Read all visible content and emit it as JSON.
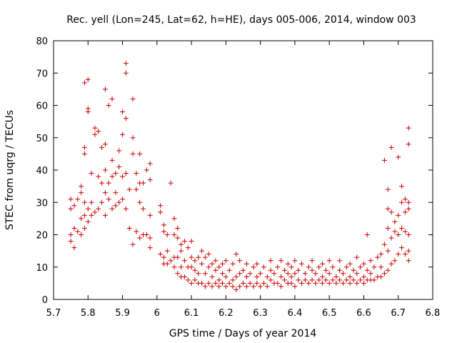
{
  "chart_data": {
    "type": "scatter",
    "title": "Rec. yell (Lon=245, Lat=62, h=HE), days 005-006, 2014, window 003",
    "xlabel": "GPS time / Days of year 2014",
    "ylabel": "STEC from uqrg / TECUs",
    "xlim": [
      5.7,
      6.8
    ],
    "ylim": [
      0,
      80
    ],
    "xticks": [
      "5.7",
      "5.8",
      "5.9",
      "6",
      "6.1",
      "6.2",
      "6.3",
      "6.4",
      "6.5",
      "6.6",
      "6.7",
      "6.8"
    ],
    "yticks": [
      "0",
      "10",
      "20",
      "30",
      "40",
      "50",
      "60",
      "70",
      "80"
    ],
    "marker": "+",
    "color": "#cc0000",
    "series": [
      {
        "name": "STEC",
        "points": [
          [
            5.75,
            18
          ],
          [
            5.75,
            20
          ],
          [
            5.75,
            28
          ],
          [
            5.75,
            31
          ],
          [
            5.76,
            16
          ],
          [
            5.76,
            22
          ],
          [
            5.76,
            29
          ],
          [
            5.77,
            21
          ],
          [
            5.77,
            31
          ],
          [
            5.78,
            20
          ],
          [
            5.78,
            25
          ],
          [
            5.78,
            33
          ],
          [
            5.78,
            35
          ],
          [
            5.79,
            22
          ],
          [
            5.79,
            26
          ],
          [
            5.79,
            30
          ],
          [
            5.79,
            45
          ],
          [
            5.79,
            47
          ],
          [
            5.79,
            67
          ],
          [
            5.8,
            24
          ],
          [
            5.8,
            28
          ],
          [
            5.8,
            58
          ],
          [
            5.8,
            59
          ],
          [
            5.8,
            68
          ],
          [
            5.81,
            26
          ],
          [
            5.81,
            30
          ],
          [
            5.81,
            39
          ],
          [
            5.82,
            27
          ],
          [
            5.82,
            51
          ],
          [
            5.82,
            53
          ],
          [
            5.83,
            28
          ],
          [
            5.83,
            38
          ],
          [
            5.83,
            52
          ],
          [
            5.84,
            30
          ],
          [
            5.84,
            36
          ],
          [
            5.84,
            47
          ],
          [
            5.85,
            26
          ],
          [
            5.85,
            33
          ],
          [
            5.85,
            40
          ],
          [
            5.85,
            48
          ],
          [
            5.85,
            65
          ],
          [
            5.86,
            31
          ],
          [
            5.86,
            36
          ],
          [
            5.86,
            60
          ],
          [
            5.87,
            28
          ],
          [
            5.87,
            38
          ],
          [
            5.87,
            43
          ],
          [
            5.87,
            62
          ],
          [
            5.88,
            29
          ],
          [
            5.88,
            33
          ],
          [
            5.88,
            39
          ],
          [
            5.89,
            30
          ],
          [
            5.89,
            41
          ],
          [
            5.89,
            46
          ],
          [
            5.9,
            31
          ],
          [
            5.9,
            38
          ],
          [
            5.9,
            58
          ],
          [
            5.9,
            51
          ],
          [
            5.91,
            28
          ],
          [
            5.91,
            39
          ],
          [
            5.91,
            56
          ],
          [
            5.91,
            70
          ],
          [
            5.91,
            73
          ],
          [
            5.92,
            34
          ],
          [
            5.92,
            22
          ],
          [
            5.93,
            45
          ],
          [
            5.93,
            50
          ],
          [
            5.93,
            62
          ],
          [
            5.93,
            17
          ],
          [
            5.94,
            34
          ],
          [
            5.94,
            21
          ],
          [
            5.94,
            39
          ],
          [
            5.95,
            19
          ],
          [
            5.95,
            30
          ],
          [
            5.95,
            36
          ],
          [
            5.95,
            45
          ],
          [
            5.96,
            20
          ],
          [
            5.96,
            28
          ],
          [
            5.96,
            36
          ],
          [
            5.97,
            20
          ],
          [
            5.97,
            40
          ],
          [
            5.98,
            16
          ],
          [
            5.98,
            19
          ],
          [
            5.98,
            26
          ],
          [
            5.98,
            37
          ],
          [
            5.98,
            42
          ],
          [
            6.01,
            14
          ],
          [
            6.01,
            27
          ],
          [
            6.01,
            29
          ],
          [
            6.02,
            11
          ],
          [
            6.02,
            13
          ],
          [
            6.02,
            21
          ],
          [
            6.02,
            23
          ],
          [
            6.03,
            11
          ],
          [
            6.03,
            15
          ],
          [
            6.03,
            20
          ],
          [
            6.04,
            12
          ],
          [
            6.04,
            36
          ],
          [
            6.05,
            10
          ],
          [
            6.05,
            13
          ],
          [
            6.05,
            20
          ],
          [
            6.05,
            25
          ],
          [
            6.06,
            8
          ],
          [
            6.06,
            13
          ],
          [
            6.06,
            19
          ],
          [
            6.06,
            22
          ],
          [
            6.07,
            7
          ],
          [
            6.07,
            10
          ],
          [
            6.07,
            15
          ],
          [
            6.07,
            17
          ],
          [
            6.08,
            7
          ],
          [
            6.08,
            12
          ],
          [
            6.08,
            18
          ],
          [
            6.09,
            6
          ],
          [
            6.09,
            10
          ],
          [
            6.09,
            16
          ],
          [
            6.1,
            5
          ],
          [
            6.1,
            10
          ],
          [
            6.1,
            13
          ],
          [
            6.1,
            18
          ],
          [
            6.11,
            6
          ],
          [
            6.11,
            9
          ],
          [
            6.11,
            12
          ],
          [
            6.12,
            5
          ],
          [
            6.12,
            8
          ],
          [
            6.12,
            13
          ],
          [
            6.13,
            5
          ],
          [
            6.13,
            11
          ],
          [
            6.13,
            15
          ],
          [
            6.14,
            4
          ],
          [
            6.14,
            8
          ],
          [
            6.14,
            13
          ],
          [
            6.15,
            5
          ],
          [
            6.15,
            10
          ],
          [
            6.15,
            14
          ],
          [
            6.16,
            4
          ],
          [
            6.16,
            7
          ],
          [
            6.16,
            11
          ],
          [
            6.17,
            5
          ],
          [
            6.17,
            9
          ],
          [
            6.17,
            12
          ],
          [
            6.18,
            4
          ],
          [
            6.18,
            6
          ],
          [
            6.18,
            10
          ],
          [
            6.19,
            5
          ],
          [
            6.19,
            8
          ],
          [
            6.19,
            11
          ],
          [
            6.2,
            4
          ],
          [
            6.2,
            7
          ],
          [
            6.2,
            12
          ],
          [
            6.21,
            5
          ],
          [
            6.21,
            9
          ],
          [
            6.22,
            4
          ],
          [
            6.22,
            6
          ],
          [
            6.22,
            11
          ],
          [
            6.23,
            3
          ],
          [
            6.23,
            7
          ],
          [
            6.23,
            14
          ],
          [
            6.24,
            4
          ],
          [
            6.24,
            8
          ],
          [
            6.24,
            12
          ],
          [
            6.25,
            5
          ],
          [
            6.25,
            9
          ],
          [
            6.26,
            4
          ],
          [
            6.26,
            7
          ],
          [
            6.26,
            11
          ],
          [
            6.27,
            5
          ],
          [
            6.27,
            8
          ],
          [
            6.28,
            4
          ],
          [
            6.28,
            10
          ],
          [
            6.29,
            5
          ],
          [
            6.29,
            7
          ],
          [
            6.29,
            11
          ],
          [
            6.3,
            4
          ],
          [
            6.3,
            8
          ],
          [
            6.31,
            5
          ],
          [
            6.31,
            10
          ],
          [
            6.32,
            4
          ],
          [
            6.32,
            7
          ],
          [
            6.33,
            6
          ],
          [
            6.33,
            9
          ],
          [
            6.33,
            12
          ],
          [
            6.34,
            5
          ],
          [
            6.34,
            8
          ],
          [
            6.35,
            5
          ],
          [
            6.35,
            10
          ],
          [
            6.36,
            4
          ],
          [
            6.36,
            7
          ],
          [
            6.36,
            12
          ],
          [
            6.37,
            6
          ],
          [
            6.37,
            9
          ],
          [
            6.38,
            5
          ],
          [
            6.38,
            8
          ],
          [
            6.38,
            11
          ],
          [
            6.39,
            5
          ],
          [
            6.39,
            7
          ],
          [
            6.39,
            10
          ],
          [
            6.4,
            4
          ],
          [
            6.4,
            8
          ],
          [
            6.4,
            12
          ],
          [
            6.41,
            6
          ],
          [
            6.41,
            9
          ],
          [
            6.42,
            5
          ],
          [
            6.42,
            11
          ],
          [
            6.43,
            6
          ],
          [
            6.43,
            8
          ],
          [
            6.44,
            5
          ],
          [
            6.44,
            10
          ],
          [
            6.45,
            6
          ],
          [
            6.45,
            9
          ],
          [
            6.45,
            12
          ],
          [
            6.46,
            5
          ],
          [
            6.46,
            8
          ],
          [
            6.47,
            6
          ],
          [
            6.47,
            10
          ],
          [
            6.48,
            5
          ],
          [
            6.48,
            7
          ],
          [
            6.48,
            11
          ],
          [
            6.49,
            6
          ],
          [
            6.49,
            9
          ],
          [
            6.5,
            5
          ],
          [
            6.5,
            8
          ],
          [
            6.5,
            12
          ],
          [
            6.51,
            6
          ],
          [
            6.51,
            10
          ],
          [
            6.52,
            5
          ],
          [
            6.52,
            7
          ],
          [
            6.53,
            6
          ],
          [
            6.53,
            9
          ],
          [
            6.53,
            12
          ],
          [
            6.54,
            5
          ],
          [
            6.54,
            8
          ],
          [
            6.55,
            6
          ],
          [
            6.55,
            10
          ],
          [
            6.56,
            5
          ],
          [
            6.56,
            7
          ],
          [
            6.56,
            11
          ],
          [
            6.57,
            6
          ],
          [
            6.57,
            9
          ],
          [
            6.58,
            5
          ],
          [
            6.58,
            8
          ],
          [
            6.58,
            13
          ],
          [
            6.59,
            6
          ],
          [
            6.59,
            10
          ],
          [
            6.6,
            5
          ],
          [
            6.6,
            7
          ],
          [
            6.6,
            11
          ],
          [
            6.61,
            6
          ],
          [
            6.61,
            9
          ],
          [
            6.61,
            20
          ],
          [
            6.62,
            6
          ],
          [
            6.62,
            8
          ],
          [
            6.62,
            12
          ],
          [
            6.63,
            6
          ],
          [
            6.63,
            10
          ],
          [
            6.64,
            7
          ],
          [
            6.64,
            13
          ],
          [
            6.65,
            7
          ],
          [
            6.65,
            10
          ],
          [
            6.65,
            14
          ],
          [
            6.66,
            8
          ],
          [
            6.66,
            17
          ],
          [
            6.66,
            43
          ],
          [
            6.67,
            9
          ],
          [
            6.67,
            15
          ],
          [
            6.67,
            22
          ],
          [
            6.67,
            28
          ],
          [
            6.67,
            34
          ],
          [
            6.68,
            11
          ],
          [
            6.68,
            19
          ],
          [
            6.68,
            27
          ],
          [
            6.68,
            47
          ],
          [
            6.69,
            12
          ],
          [
            6.69,
            21
          ],
          [
            6.69,
            24
          ],
          [
            6.7,
            14
          ],
          [
            6.7,
            20
          ],
          [
            6.7,
            26
          ],
          [
            6.7,
            44
          ],
          [
            6.71,
            16
          ],
          [
            6.71,
            22
          ],
          [
            6.71,
            30
          ],
          [
            6.71,
            35
          ],
          [
            6.72,
            14
          ],
          [
            6.72,
            21
          ],
          [
            6.72,
            27
          ],
          [
            6.72,
            31
          ],
          [
            6.73,
            12
          ],
          [
            6.73,
            15
          ],
          [
            6.73,
            20
          ],
          [
            6.73,
            28
          ],
          [
            6.73,
            30
          ],
          [
            6.73,
            48
          ],
          [
            6.73,
            53
          ]
        ]
      }
    ]
  }
}
